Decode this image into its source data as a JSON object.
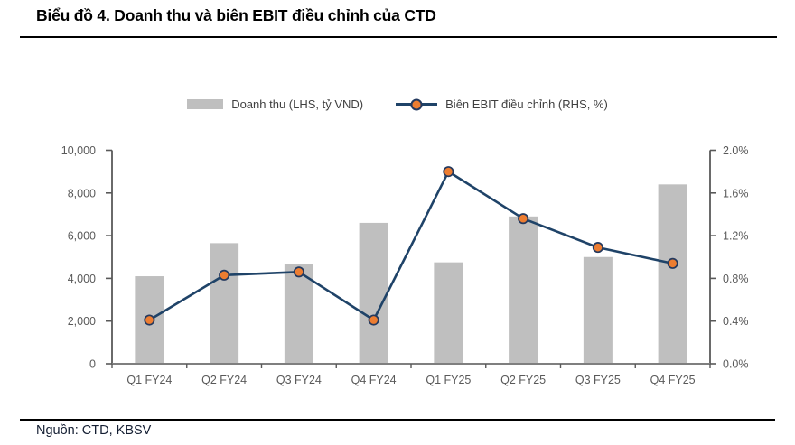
{
  "title": "Biểu đồ 4. Doanh thu và biên EBIT điều chỉnh của CTD",
  "source": "Nguồn: CTD, KBSV",
  "legend": [
    {
      "label": "Doanh thu (LHS, tỷ VND)",
      "swatch": "bar-swatch"
    },
    {
      "label": "Biên EBIT điều chỉnh (RHS, %)",
      "swatch": "line-marker-swatch"
    }
  ],
  "colors": {
    "bar": "#BFBFBF",
    "line": "#1F4368",
    "marker_fill": "#ED7D31",
    "marker_stroke": "#24395E",
    "axis": "#595959",
    "tick_label": "#595959",
    "category_label": "#595959",
    "legend_text": "#404040",
    "title_text": "#000000",
    "source_text": "#141E32",
    "rule": "#000000"
  },
  "chart_data": {
    "type": "bar+line combo",
    "categories": [
      "Q1 FY24",
      "Q2 FY24",
      "Q3 FY24",
      "Q4 FY24",
      "Q1 FY25",
      "Q2 FY25",
      "Q3 FY25",
      "Q4 FY25"
    ],
    "series": [
      {
        "name": "Doanh thu (LHS, tỷ VND)",
        "type": "bar",
        "axis": "left",
        "values": [
          4100,
          5650,
          4650,
          6600,
          4750,
          6900,
          5000,
          8400
        ]
      },
      {
        "name": "Biên EBIT điều chỉnh (RHS, %)",
        "type": "line",
        "axis": "right",
        "values": [
          0.41,
          0.83,
          0.86,
          0.41,
          1.8,
          1.36,
          1.09,
          0.94
        ]
      }
    ],
    "left_axis": {
      "label": "tỷ VND",
      "min": 0,
      "max": 10000,
      "step": 2000,
      "tick_labels": [
        "0",
        "2,000",
        "4,000",
        "6,000",
        "8,000",
        "10,000"
      ]
    },
    "right_axis": {
      "label": "%",
      "min": 0,
      "max": 2.0,
      "step": 0.4,
      "tick_labels": [
        "0.0%",
        "0.4%",
        "0.8%",
        "1.2%",
        "1.6%",
        "2.0%"
      ]
    },
    "grid": false,
    "legend_position": "top-center"
  }
}
